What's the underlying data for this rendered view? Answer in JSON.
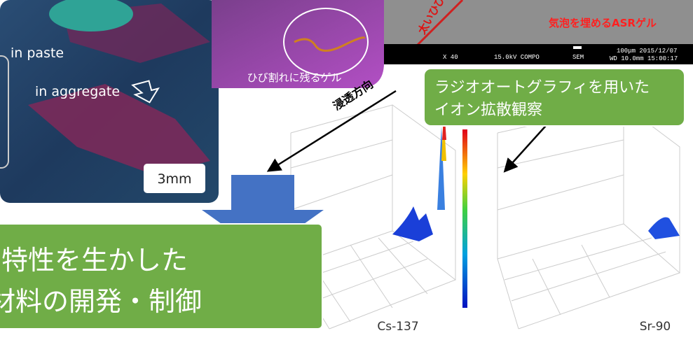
{
  "micrograph": {
    "paste_label": "in paste",
    "aggregate_label": "in aggregate",
    "scale": "3mm"
  },
  "gel_image": {
    "caption": "ひび割れに残るゲル"
  },
  "sem_image": {
    "crack_label": "太いひび",
    "bubble_label": "気泡を埋めるASRゲル",
    "magnification": "X 40",
    "voltage": "15.0kV COMPO",
    "mode": "SEM",
    "scale": "100μm 2015/12/07",
    "wd_time": "WD 10.0mm 15:00:17"
  },
  "radiography": {
    "direction": "浸透方向",
    "callout_line1": "ラジオオートグラフィを用いた",
    "callout_line2": "イオン拡散観察",
    "plot1_label": "Cs-137",
    "plot2_label": "Sr-90"
  },
  "conclusion": {
    "line1": "特性を生かした",
    "line2": "材料の開発・制御"
  }
}
